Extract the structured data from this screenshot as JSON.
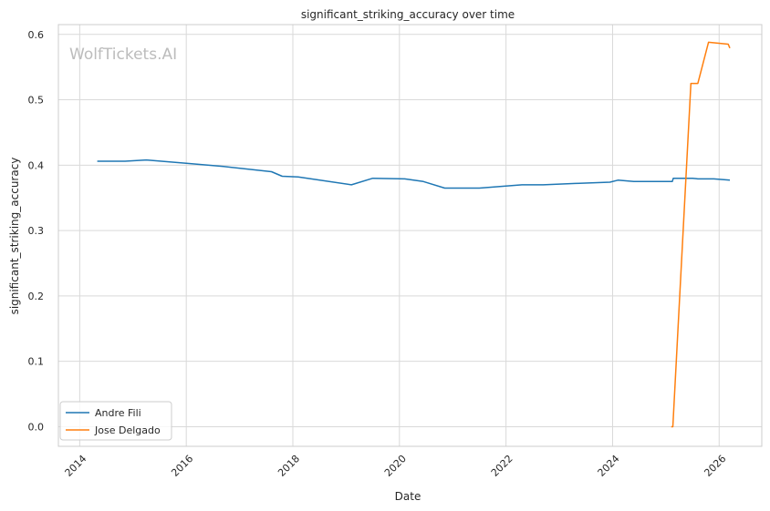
{
  "chart_data": {
    "type": "line",
    "title": "significant_striking_accuracy over time",
    "xlabel": "Date",
    "ylabel": "significant_striking_accuracy",
    "watermark": "WolfTickets.AI",
    "xlim": [
      2013.6,
      2026.8
    ],
    "ylim": [
      -0.03,
      0.615
    ],
    "xticks": [
      2014,
      2016,
      2018,
      2020,
      2022,
      2024,
      2026
    ],
    "xtick_labels": [
      "2014",
      "2016",
      "2018",
      "2020",
      "2022",
      "2024",
      "2026"
    ],
    "yticks": [
      0.0,
      0.1,
      0.2,
      0.3,
      0.4,
      0.5,
      0.6
    ],
    "ytick_labels": [
      "0.0",
      "0.1",
      "0.2",
      "0.3",
      "0.4",
      "0.5",
      "0.6"
    ],
    "grid": true,
    "legend_position": "lower-left",
    "series": [
      {
        "name": "Andre Fili",
        "color": "#1f77b4",
        "points": [
          {
            "x": 2014.33,
            "y": 0.406
          },
          {
            "x": 2014.85,
            "y": 0.406
          },
          {
            "x": 2015.25,
            "y": 0.408
          },
          {
            "x": 2016.0,
            "y": 0.403
          },
          {
            "x": 2016.7,
            "y": 0.398
          },
          {
            "x": 2017.6,
            "y": 0.39
          },
          {
            "x": 2017.8,
            "y": 0.383
          },
          {
            "x": 2018.1,
            "y": 0.382
          },
          {
            "x": 2019.1,
            "y": 0.37
          },
          {
            "x": 2019.5,
            "y": 0.38
          },
          {
            "x": 2020.1,
            "y": 0.379
          },
          {
            "x": 2020.45,
            "y": 0.375
          },
          {
            "x": 2020.85,
            "y": 0.365
          },
          {
            "x": 2021.5,
            "y": 0.365
          },
          {
            "x": 2022.3,
            "y": 0.37
          },
          {
            "x": 2022.7,
            "y": 0.37
          },
          {
            "x": 2023.3,
            "y": 0.372
          },
          {
            "x": 2023.95,
            "y": 0.374
          },
          {
            "x": 2024.1,
            "y": 0.377
          },
          {
            "x": 2024.4,
            "y": 0.375
          },
          {
            "x": 2025.0,
            "y": 0.375
          },
          {
            "x": 2025.12,
            "y": 0.375
          },
          {
            "x": 2025.14,
            "y": 0.38
          },
          {
            "x": 2025.5,
            "y": 0.38
          },
          {
            "x": 2025.6,
            "y": 0.379
          },
          {
            "x": 2025.9,
            "y": 0.379
          },
          {
            "x": 2026.2,
            "y": 0.377
          }
        ]
      },
      {
        "name": "Jose Delgado",
        "color": "#ff7f0e",
        "points": [
          {
            "x": 2025.1,
            "y": 0.0
          },
          {
            "x": 2025.13,
            "y": 0.0
          },
          {
            "x": 2025.47,
            "y": 0.525
          },
          {
            "x": 2025.6,
            "y": 0.525
          },
          {
            "x": 2025.8,
            "y": 0.588
          },
          {
            "x": 2026.17,
            "y": 0.585
          },
          {
            "x": 2026.2,
            "y": 0.579
          }
        ]
      }
    ]
  }
}
